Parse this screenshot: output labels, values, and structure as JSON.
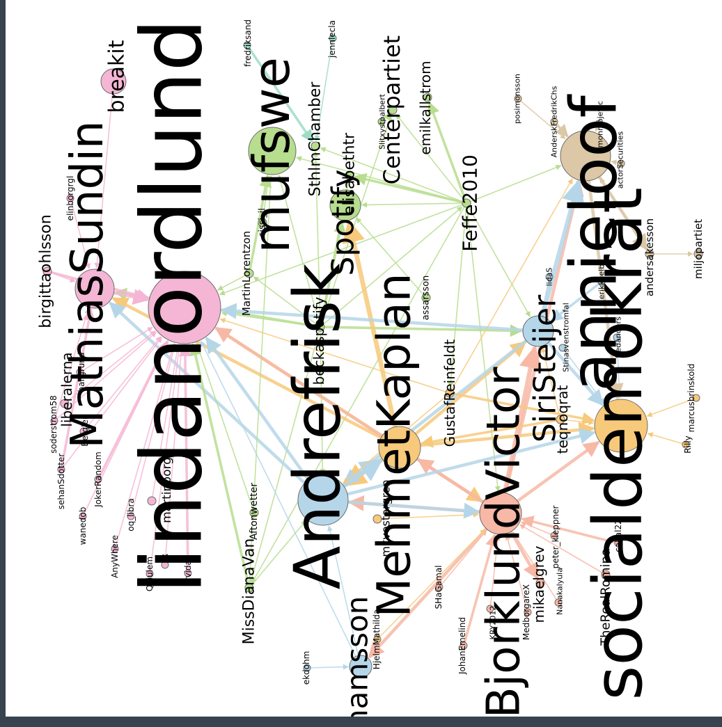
{
  "graph": {
    "colors": {
      "pink": "#f4b6d4",
      "green": "#b7dd8e",
      "blue": "#b5d6e8",
      "orange": "#f7c97b",
      "salmon": "#f7b8a6",
      "tan": "#dcc7a6",
      "lavender": "#cfc6e6",
      "teal": "#9fdcc4"
    },
    "nodes": [
      {
        "id": "lindanordlund",
        "label": "lindanordlund",
        "color": "pink",
        "r": 52,
        "size": 120
      },
      {
        "id": "andrefrisk",
        "label": "Andrefrisk",
        "color": "blue",
        "r": 36,
        "size": 92
      },
      {
        "id": "socialdemokrat",
        "label": "socialdemokrat",
        "color": "orange",
        "r": 38,
        "size": 96
      },
      {
        "id": "annieloof",
        "label": "annieloof",
        "color": "tan",
        "r": 36,
        "size": 92
      },
      {
        "id": "mathiassundin",
        "label": "MathiasSundin",
        "color": "pink",
        "r": 28,
        "size": 64
      },
      {
        "id": "mufswe",
        "label": "mufswe",
        "color": "green",
        "r": 34,
        "size": 72
      },
      {
        "id": "mehmetkaplan",
        "label": "MehmetKaplan",
        "color": "orange",
        "r": 30,
        "size": 66
      },
      {
        "id": "bjorklundvictor",
        "label": "BjorklundVictor",
        "color": "salmon",
        "r": 30,
        "size": 66
      },
      {
        "id": "spotify",
        "label": "Spotify",
        "color": "green",
        "r": 22,
        "size": 44
      },
      {
        "id": "siristeijer",
        "label": "SiriSteijer",
        "color": "blue",
        "r": 22,
        "size": 44
      },
      {
        "id": "centerpartiet",
        "label": "Centerpartiet",
        "color": "green",
        "r": 6,
        "size": 32
      },
      {
        "id": "johamsson",
        "label": "johamsson",
        "color": "blue",
        "r": 16,
        "size": 42
      },
      {
        "id": "feffe2010",
        "label": "Feffe2010",
        "color": "green",
        "r": 6,
        "size": 28
      },
      {
        "id": "breakit",
        "label": "breakit",
        "color": "pink",
        "r": 18,
        "size": 30
      },
      {
        "id": "missdianavan",
        "label": "MissDianaVan",
        "color": "green",
        "r": 6,
        "size": 22
      },
      {
        "id": "sthlmchamber",
        "label": "SthlmChamber",
        "color": "green",
        "r": 6,
        "size": 22
      },
      {
        "id": "elisabethtr",
        "label": "elisabethtr",
        "color": "green",
        "r": 6,
        "size": 22
      },
      {
        "id": "beckaspotify",
        "label": "beckaspotify",
        "color": "green",
        "r": 6,
        "size": 20
      },
      {
        "id": "gustafreinfeldt",
        "label": "GustafReinfeldt",
        "color": "orange",
        "r": 6,
        "size": 20
      },
      {
        "id": "teqnoqrat",
        "label": "teqnoqrat",
        "color": "orange",
        "r": 6,
        "size": 20
      },
      {
        "id": "mikaelgrev",
        "label": "mikaelgrev",
        "color": "salmon",
        "r": 6,
        "size": 20
      },
      {
        "id": "emilkallstrom",
        "label": "emilkallstrom",
        "color": "green",
        "r": 6,
        "size": 20
      },
      {
        "id": "martinlorentzon",
        "label": "MartinLorentzon",
        "color": "green",
        "r": 6,
        "size": 15
      },
      {
        "id": "birgittaohlsson",
        "label": "birgittaohlsson",
        "color": "pink",
        "r": 6,
        "size": 22
      },
      {
        "id": "liberalerna",
        "label": "liberalerna",
        "color": "pink",
        "r": 6,
        "size": 20
      },
      {
        "id": "martinborgs",
        "label": "martinborgs",
        "color": "pink",
        "r": 6,
        "size": 17
      },
      {
        "id": "andersakesson",
        "label": "andersakesson",
        "color": "tan",
        "r": 6,
        "size": 15
      },
      {
        "id": "miljopartiet",
        "label": "miljopartiet",
        "color": "tan",
        "r": 6,
        "size": 15
      },
      {
        "id": "therealromina",
        "label": "TheRealRomina",
        "color": "salmon",
        "r": 6,
        "size": 18
      },
      {
        "id": "mkvestergren",
        "label": "mkvestergren",
        "color": "orange",
        "r": 6,
        "size": 16
      },
      {
        "id": "aftonwetter",
        "label": "Aftonwetter",
        "color": "green",
        "r": 6,
        "size": 14
      },
      {
        "id": "assarsson",
        "label": "assarsson",
        "color": "green",
        "r": 6,
        "size": 13
      },
      {
        "id": "cissi",
        "label": "cissi_jl",
        "color": "green",
        "r": 6,
        "size": 13
      },
      {
        "id": "fredriksand",
        "label": "fredriksand",
        "color": "teal",
        "r": 5,
        "size": 12
      },
      {
        "id": "jennlecla",
        "label": "jennlecla",
        "color": "teal",
        "r": 5,
        "size": 12
      },
      {
        "id": "slitxyst",
        "label": "Slitxystpalbert",
        "color": "green",
        "r": 5,
        "size": 11
      },
      {
        "id": "posimonsson",
        "label": "posimonsson",
        "color": "tan",
        "r": 5,
        "size": 11
      },
      {
        "id": "anderskfredrik",
        "label": "AnderskFredrikChs",
        "color": "tan",
        "r": 5,
        "size": 11
      },
      {
        "id": "simonmojevic",
        "label": "simonmojevic",
        "color": "tan",
        "r": 5,
        "size": 11
      },
      {
        "id": "actorsecurities",
        "label": "actorSecurities",
        "color": "tan",
        "r": 5,
        "size": 11
      },
      {
        "id": "erikkaelb",
        "label": "erikkaelb",
        "color": "blue",
        "r": 5,
        "size": 11
      },
      {
        "id": "lidas",
        "label": "lidaS",
        "color": "blue",
        "r": 5,
        "size": 11
      },
      {
        "id": "stinasvenstromfal",
        "label": "Stinasvenstromfal",
        "color": "blue",
        "r": 5,
        "size": 11
      },
      {
        "id": "fredanders",
        "label": "fredanders",
        "color": "blue",
        "r": 5,
        "size": 11
      },
      {
        "id": "marcusbrinskold",
        "label": "marcusbrinskold",
        "color": "orange",
        "r": 5,
        "size": 12
      },
      {
        "id": "rilly",
        "label": "Rilly",
        "color": "orange",
        "r": 5,
        "size": 12
      },
      {
        "id": "peterkleppner",
        "label": "peter_kleppner",
        "color": "salmon",
        "r": 5,
        "size": 12
      },
      {
        "id": "cahal22",
        "label": "cahal22",
        "color": "salmon",
        "r": 5,
        "size": 12
      },
      {
        "id": "nanakalyula",
        "label": "Nanakalyula",
        "color": "salmon",
        "r": 5,
        "size": 11
      },
      {
        "id": "medborgarex",
        "label": "MedborgareX",
        "color": "salmon",
        "r": 5,
        "size": 12
      },
      {
        "id": "kry",
        "label": "KRY2012",
        "color": "salmon",
        "r": 5,
        "size": 11
      },
      {
        "id": "johanemelind",
        "label": "JohanEmelind",
        "color": "salmon",
        "r": 5,
        "size": 12
      },
      {
        "id": "shagamal",
        "label": "SHaGamal",
        "color": "salmon",
        "r": 5,
        "size": 12
      },
      {
        "id": "hjelmmathilda",
        "label": "HjelmMathilda",
        "color": "orange",
        "r": 5,
        "size": 12
      },
      {
        "id": "ekdohm",
        "label": "ekdohm",
        "color": "blue",
        "r": 5,
        "size": 12
      },
      {
        "id": "qeiulem",
        "label": "Qeiulem",
        "color": "pink",
        "r": 5,
        "size": 12
      },
      {
        "id": "arvida",
        "label": "arvida",
        "color": "pink",
        "r": 5,
        "size": 12
      },
      {
        "id": "ruri",
        "label": "R",
        "color": "pink",
        "r": 5,
        "size": 12
      },
      {
        "id": "anywhere",
        "label": "AnyWhere",
        "color": "pink",
        "r": 5,
        "size": 12
      },
      {
        "id": "oqlibra",
        "label": "oq_libra",
        "color": "pink",
        "r": 5,
        "size": 12
      },
      {
        "id": "wanedob",
        "label": "wanedob",
        "color": "pink",
        "r": 5,
        "size": 12
      },
      {
        "id": "jokerrandom",
        "label": "JokerRandom",
        "color": "pink",
        "r": 5,
        "size": 12
      },
      {
        "id": "sehanddotter",
        "label": "sehanSdotter",
        "color": "pink",
        "r": 5,
        "size": 12
      },
      {
        "id": "soderstrom58",
        "label": "soderstrom58",
        "color": "pink",
        "r": 5,
        "size": 12
      },
      {
        "id": "bergler",
        "label": "Bergler",
        "color": "pink",
        "r": 5,
        "size": 12
      },
      {
        "id": "hallgrund",
        "label": "hallgrund",
        "color": "pink",
        "r": 5,
        "size": 12
      },
      {
        "id": "elinborgrgl",
        "label": "elinborgrgl",
        "color": "pink",
        "r": 5,
        "size": 12
      }
    ],
    "edges": [
      [
        "beckaspotify",
        "spotify"
      ],
      [
        "beckaspotify",
        "mufswe"
      ],
      [
        "beckaspotify",
        "martinlorentzon"
      ],
      [
        "beckaspotify",
        "elisabethtr"
      ],
      [
        "beckaspotify",
        "centerpartiet"
      ],
      [
        "beckaspotify",
        "siristeijer"
      ],
      [
        "beckaspotify",
        "feffe2010"
      ],
      [
        "beckaspotify",
        "sthlmchamber"
      ],
      [
        "beckaspotify",
        "lindanordlund"
      ],
      [
        "beckaspotify",
        "missdianavan"
      ],
      [
        "beckaspotify",
        "mathiassundin"
      ],
      [
        "beckaspotify",
        "andrefrisk"
      ],
      [
        "feffe2010",
        "mufswe"
      ],
      [
        "feffe2010",
        "spotify"
      ],
      [
        "feffe2010",
        "centerpartiet"
      ],
      [
        "feffe2010",
        "emilkallstrom"
      ],
      [
        "feffe2010",
        "lindanordlund"
      ],
      [
        "feffe2010",
        "annieloof"
      ],
      [
        "feffe2010",
        "siristeijer"
      ],
      [
        "feffe2010",
        "bjorklundvictor"
      ],
      [
        "feffe2010",
        "elisabethtr"
      ],
      [
        "feffe2010",
        "missdianavan"
      ],
      [
        "feffe2010",
        "sthlmchamber"
      ],
      [
        "feffe2010",
        "gustafreinfeldt"
      ],
      [
        "mehmetkaplan",
        "lindanordlund"
      ],
      [
        "mehmetkaplan",
        "andrefrisk"
      ],
      [
        "mehmetkaplan",
        "siristeijer"
      ],
      [
        "mehmetkaplan",
        "socialdemokrat"
      ],
      [
        "mehmetkaplan",
        "bjorklundvictor"
      ],
      [
        "mehmetkaplan",
        "mathiassundin"
      ],
      [
        "mehmetkaplan",
        "spotify"
      ],
      [
        "bjorklundvictor",
        "lindanordlund"
      ],
      [
        "bjorklundvictor",
        "annieloof"
      ],
      [
        "bjorklundvictor",
        "socialdemokrat"
      ],
      [
        "bjorklundvictor",
        "andrefrisk"
      ],
      [
        "bjorklundvictor",
        "siristeijer"
      ],
      [
        "bjorklundvictor",
        "mehmetkaplan"
      ],
      [
        "bjorklundvictor",
        "johamsson"
      ],
      [
        "bjorklundvictor",
        "mikaelgrev"
      ],
      [
        "peterkleppner",
        "bjorklundvictor"
      ],
      [
        "cahal22",
        "bjorklundvictor"
      ],
      [
        "therealromina",
        "bjorklundvictor"
      ],
      [
        "nanakalyula",
        "bjorklundvictor"
      ],
      [
        "medborgarex",
        "bjorklundvictor"
      ],
      [
        "kry",
        "bjorklundvictor"
      ],
      [
        "johanemelind",
        "bjorklundvictor"
      ],
      [
        "shagamal",
        "bjorklundvictor"
      ],
      [
        "hjelmmathilda",
        "bjorklundvictor"
      ],
      [
        "mkvestergren",
        "bjorklundvictor"
      ],
      [
        "siristeijer",
        "andrefrisk"
      ],
      [
        "siristeijer",
        "annieloof"
      ],
      [
        "siristeijer",
        "socialdemokrat"
      ],
      [
        "siristeijer",
        "lindanordlund"
      ],
      [
        "teqnoqrat",
        "socialdemokrat"
      ],
      [
        "teqnoqrat",
        "siristeijer"
      ],
      [
        "teqnoqrat",
        "mehmetkaplan"
      ],
      [
        "marcusbrinskold",
        "socialdemokrat"
      ],
      [
        "rilly",
        "socialdemokrat"
      ],
      [
        "fredanders",
        "socialdemokrat"
      ],
      [
        "stinasvenstromfal",
        "socialdemokrat"
      ],
      [
        "erikkaelb",
        "siristeijer"
      ],
      [
        "lidas",
        "siristeijer"
      ],
      [
        "andersakesson",
        "miljopartiet"
      ],
      [
        "andersakesson",
        "annieloof"
      ],
      [
        "posimonsson",
        "annieloof"
      ],
      [
        "anderskfredrik",
        "annieloof"
      ],
      [
        "simonmojevic",
        "annieloof"
      ],
      [
        "actorsecurities",
        "annieloof"
      ],
      [
        "annieloof",
        "socialdemokrat"
      ],
      [
        "annieloof",
        "andersakesson"
      ],
      [
        "fredriksand",
        "sthlmchamber"
      ],
      [
        "jennlecla",
        "sthlmchamber"
      ],
      [
        "slitxyst",
        "centerpartiet"
      ],
      [
        "cissi",
        "mufswe"
      ],
      [
        "martinlorentzon",
        "lindanordlund"
      ],
      [
        "martinlorentzon",
        "mufswe"
      ],
      [
        "assarsson",
        "spotify"
      ],
      [
        "andrefrisk",
        "lindanordlund"
      ],
      [
        "andrefrisk",
        "mathiassundin"
      ],
      [
        "andrefrisk",
        "socialdemokrat"
      ],
      [
        "andrefrisk",
        "mehmetkaplan"
      ],
      [
        "johamsson",
        "andrefrisk"
      ],
      [
        "johamsson",
        "lindanordlund"
      ],
      [
        "ekdohm",
        "johamsson"
      ],
      [
        "missdianavan",
        "andrefrisk"
      ],
      [
        "missdianavan",
        "lindanordlund"
      ],
      [
        "missdianavan",
        "mufswe"
      ],
      [
        "aftonwetter",
        "lindanordlund"
      ],
      [
        "gustafreinfeldt",
        "andrefrisk"
      ],
      [
        "gustafreinfeldt",
        "lindanordlund"
      ],
      [
        "gustafreinfeldt",
        "socialdemokrat"
      ],
      [
        "gustafreinfeldt",
        "annieloof"
      ],
      [
        "mathiassundin",
        "lindanordlund"
      ],
      [
        "breakit",
        "mathiassundin"
      ],
      [
        "birgittaohlsson",
        "mathiassundin"
      ],
      [
        "birgittaohlsson",
        "lindanordlund"
      ],
      [
        "elinborgrgl",
        "mathiassundin"
      ],
      [
        "liberalerna",
        "lindanordlund"
      ],
      [
        "martinborgs",
        "lindanordlund"
      ],
      [
        "qeiulem",
        "lindanordlund"
      ],
      [
        "arvida",
        "lindanordlund"
      ],
      [
        "ruri",
        "lindanordlund"
      ],
      [
        "anywhere",
        "lindanordlund"
      ],
      [
        "oqlibra",
        "lindanordlund"
      ],
      [
        "wanedob",
        "lindanordlund"
      ],
      [
        "jokerrandom",
        "lindanordlund"
      ],
      [
        "sehanddotter",
        "lindanordlund"
      ],
      [
        "soderstrom58",
        "lindanordlund"
      ],
      [
        "bergler",
        "lindanordlund"
      ],
      [
        "hallgrund",
        "lindanordlund"
      ],
      [
        "sehanddotter",
        "mathiassundin"
      ],
      [
        "soderstrom58",
        "mathiassundin"
      ],
      [
        "andrefrisk",
        "bjorklundvictor"
      ]
    ]
  }
}
